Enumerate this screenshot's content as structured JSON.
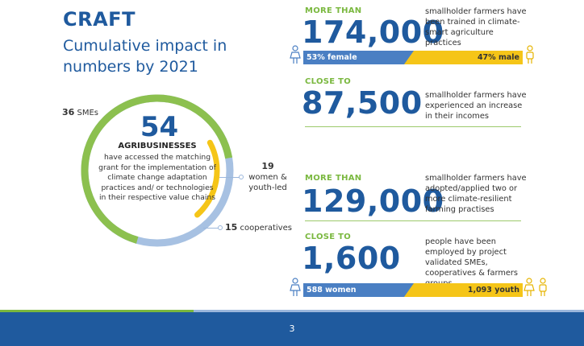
{
  "header": {
    "brand": "CRAFT",
    "subtitle": "Cumulative impact in numbers by 2021"
  },
  "agribusiness": {
    "total": "54",
    "heading": "AGRIBUSINESSES",
    "description": "have accessed the matching grant for the implementation of climate change adaptation practices and/ or technologies in their respective value chains",
    "smes_count": "36",
    "smes_label": "SMEs",
    "women_count": "19",
    "women_label": "women & youth-led",
    "coops_count": "15",
    "coops_label": "cooperatives",
    "segments": [
      {
        "name": "SMEs",
        "value": 36,
        "color": "#8cc04f"
      },
      {
        "name": "women & youth-led",
        "value": 19,
        "color": "#f5c518"
      },
      {
        "name": "cooperatives",
        "value": 15,
        "color": "#a7c1e2"
      }
    ]
  },
  "stats": [
    {
      "prefix": "MORE THAN",
      "number": "174,000",
      "description": "smallholder farmers have been trained in climate-smart agriculture practices",
      "bar_left": "53% female",
      "bar_right": "47% male",
      "left_share": 0.53
    },
    {
      "prefix": "CLOSE TO",
      "number": "87,500",
      "description": "smallholder farmers have experienced an increase in their incomes"
    },
    {
      "prefix": "MORE THAN",
      "number": "129,000",
      "description": "smallholder farmers have adopted/applied two or more climate-resilient farming practises"
    },
    {
      "prefix": "CLOSE TO",
      "number": "1,600",
      "description": "people have been employed by project validated SMEs, cooperatives & farmers groups.",
      "bar_left": "588 women",
      "bar_right": "1,093 youth"
    }
  ],
  "footer": {
    "page_number": "3"
  },
  "colors": {
    "blue": "#1f5a9e",
    "green": "#7ab83f",
    "yellow": "#f5c518",
    "light_blue": "#a7c1e2"
  }
}
